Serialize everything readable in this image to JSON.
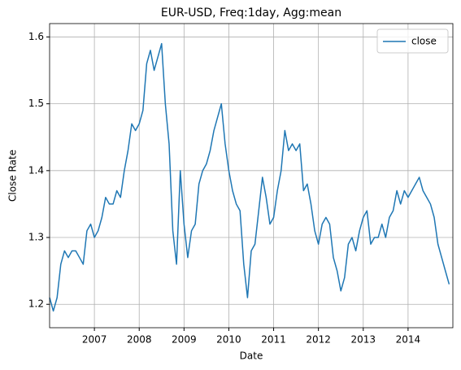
{
  "chart_data": {
    "type": "line",
    "title": "EUR-USD, Freq:1day, Agg:mean",
    "xlabel": "Date",
    "ylabel": "Close Rate",
    "x": [
      2006.0,
      2006.083,
      2006.167,
      2006.25,
      2006.333,
      2006.417,
      2006.5,
      2006.583,
      2006.667,
      2006.75,
      2006.833,
      2006.917,
      2007.0,
      2007.083,
      2007.167,
      2007.25,
      2007.333,
      2007.417,
      2007.5,
      2007.583,
      2007.667,
      2007.75,
      2007.833,
      2007.917,
      2008.0,
      2008.083,
      2008.167,
      2008.25,
      2008.333,
      2008.417,
      2008.5,
      2008.583,
      2008.667,
      2008.75,
      2008.833,
      2008.917,
      2009.0,
      2009.083,
      2009.167,
      2009.25,
      2009.333,
      2009.417,
      2009.5,
      2009.583,
      2009.667,
      2009.75,
      2009.833,
      2009.917,
      2010.0,
      2010.083,
      2010.167,
      2010.25,
      2010.333,
      2010.417,
      2010.5,
      2010.583,
      2010.667,
      2010.75,
      2010.833,
      2010.917,
      2011.0,
      2011.083,
      2011.167,
      2011.25,
      2011.333,
      2011.417,
      2011.5,
      2011.583,
      2011.667,
      2011.75,
      2011.833,
      2011.917,
      2012.0,
      2012.083,
      2012.167,
      2012.25,
      2012.333,
      2012.417,
      2012.5,
      2012.583,
      2012.667,
      2012.75,
      2012.833,
      2012.917,
      2013.0,
      2013.083,
      2013.167,
      2013.25,
      2013.333,
      2013.417,
      2013.5,
      2013.583,
      2013.667,
      2013.75,
      2013.833,
      2013.917,
      2014.0,
      2014.083,
      2014.167,
      2014.25,
      2014.333,
      2014.417,
      2014.5,
      2014.583,
      2014.667,
      2014.75,
      2014.833,
      2014.917
    ],
    "series": [
      {
        "name": "close",
        "color": "#1f77b4",
        "values": [
          1.21,
          1.19,
          1.21,
          1.26,
          1.28,
          1.27,
          1.28,
          1.28,
          1.27,
          1.26,
          1.31,
          1.32,
          1.3,
          1.31,
          1.33,
          1.36,
          1.35,
          1.35,
          1.37,
          1.36,
          1.4,
          1.43,
          1.47,
          1.46,
          1.47,
          1.49,
          1.56,
          1.58,
          1.55,
          1.57,
          1.59,
          1.5,
          1.44,
          1.31,
          1.26,
          1.4,
          1.32,
          1.27,
          1.31,
          1.32,
          1.38,
          1.4,
          1.41,
          1.43,
          1.46,
          1.48,
          1.5,
          1.44,
          1.4,
          1.37,
          1.35,
          1.34,
          1.26,
          1.21,
          1.28,
          1.29,
          1.34,
          1.39,
          1.36,
          1.32,
          1.33,
          1.37,
          1.4,
          1.46,
          1.43,
          1.44,
          1.43,
          1.44,
          1.37,
          1.38,
          1.35,
          1.31,
          1.29,
          1.32,
          1.33,
          1.32,
          1.27,
          1.25,
          1.22,
          1.24,
          1.29,
          1.3,
          1.28,
          1.31,
          1.33,
          1.34,
          1.29,
          1.3,
          1.3,
          1.32,
          1.3,
          1.33,
          1.34,
          1.37,
          1.35,
          1.37,
          1.36,
          1.37,
          1.38,
          1.39,
          1.37,
          1.36,
          1.35,
          1.33,
          1.29,
          1.27,
          1.25,
          1.23
        ]
      }
    ],
    "xlim": [
      2006.0,
      2015.0
    ],
    "ylim": [
      1.165,
      1.62
    ],
    "xticks": [
      2007,
      2008,
      2009,
      2010,
      2011,
      2012,
      2013,
      2014
    ],
    "yticks": [
      1.2,
      1.3,
      1.4,
      1.5,
      1.6
    ],
    "grid": true,
    "legend": "upper right"
  }
}
